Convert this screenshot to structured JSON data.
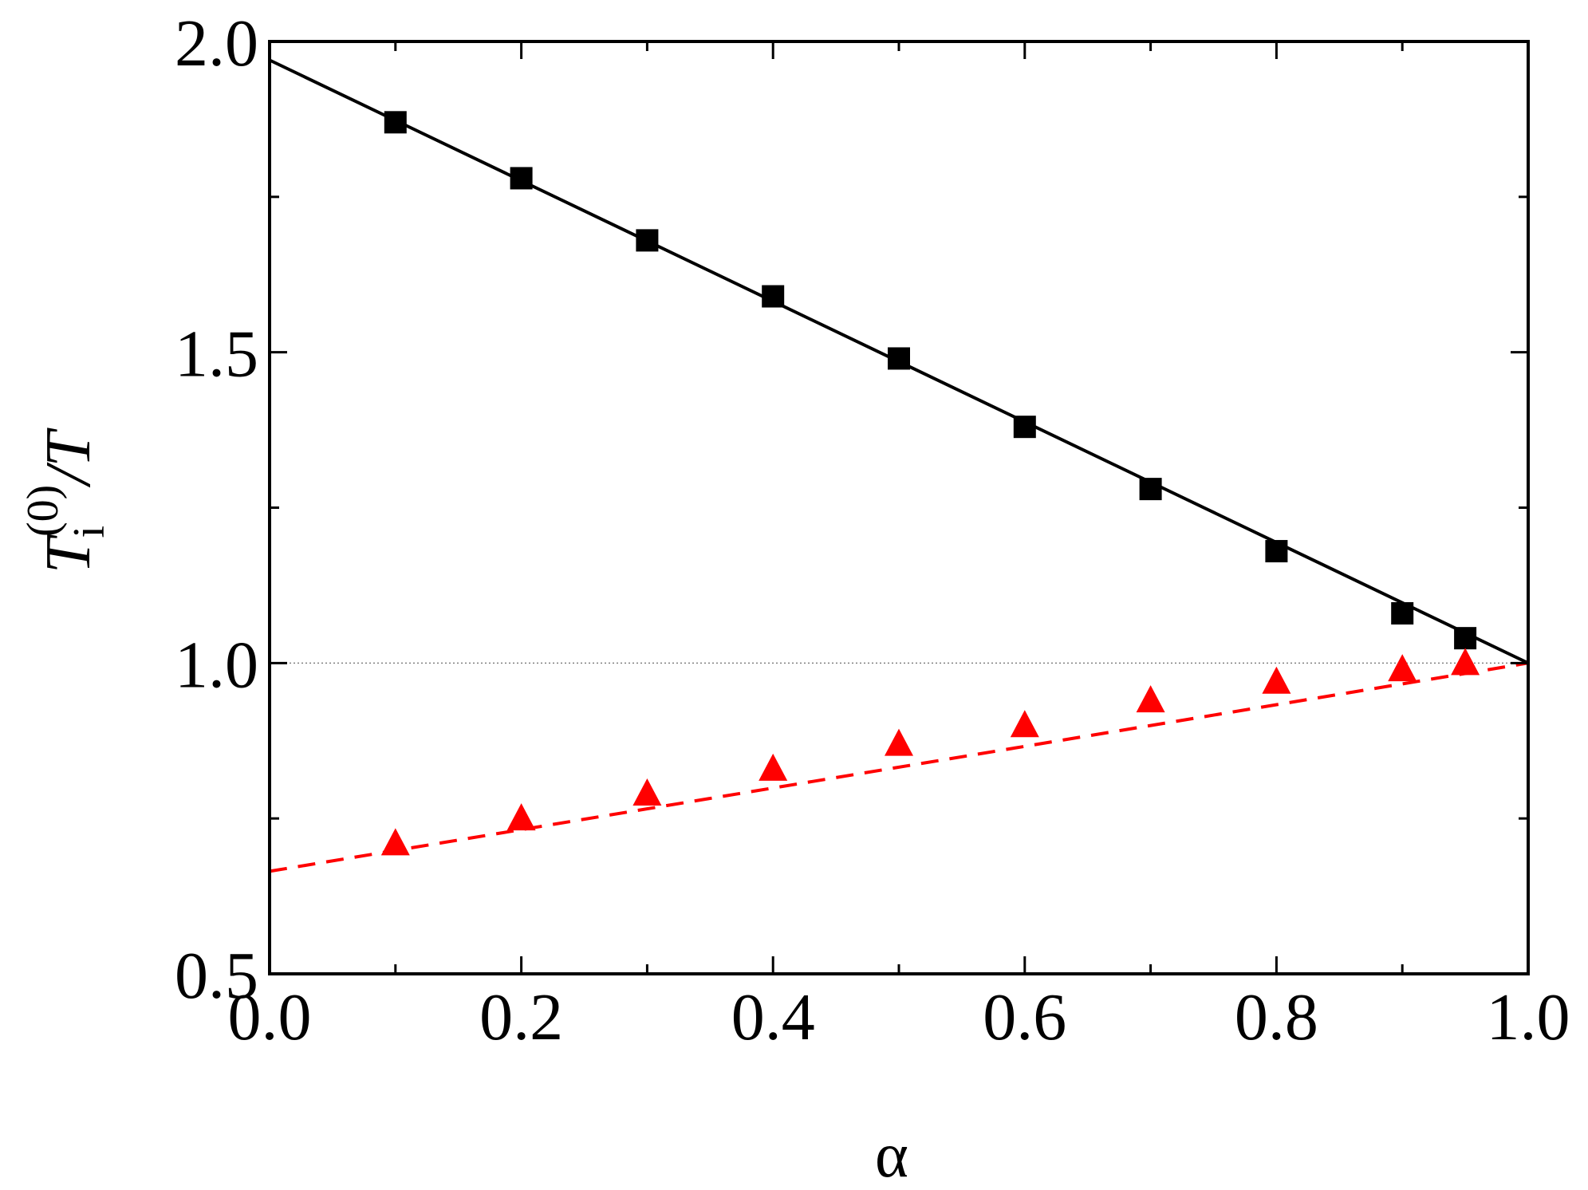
{
  "chart_data": {
    "type": "line",
    "xlabel": "α",
    "ylabel": {
      "base": "T",
      "subscript": "i",
      "superscript": "(0)",
      "suffix": "/T"
    },
    "xlim": [
      0.0,
      1.0
    ],
    "ylim": [
      0.5,
      2.0
    ],
    "x_ticks": [
      0.0,
      0.2,
      0.4,
      0.6,
      0.8,
      1.0
    ],
    "x_tick_labels": [
      "0.0",
      "0.2",
      "0.4",
      "0.6",
      "0.8",
      "1.0"
    ],
    "y_ticks": [
      0.5,
      1.0,
      1.5,
      2.0
    ],
    "y_tick_labels": [
      "0.5",
      "1.0",
      "1.5",
      "2.0"
    ],
    "x_minor_ticks": [
      0.1,
      0.3,
      0.5,
      0.7,
      0.9
    ],
    "y_minor_ticks": [
      0.75,
      1.25,
      1.75
    ],
    "grid": false,
    "reference_line": {
      "y": 1.0,
      "style": "dotted",
      "color": "#808080"
    },
    "series": [
      {
        "marker": "square",
        "color": "#000000",
        "points": {
          "x": [
            0.1,
            0.2,
            0.3,
            0.4,
            0.5,
            0.6,
            0.7,
            0.8,
            0.9,
            0.95
          ],
          "y": [
            1.87,
            1.78,
            1.68,
            1.59,
            1.49,
            1.38,
            1.28,
            1.18,
            1.08,
            1.04
          ]
        },
        "line_style": "solid",
        "line": {
          "x": [
            0.0,
            1.0
          ],
          "y": [
            1.97,
            1.0
          ]
        }
      },
      {
        "marker": "triangle",
        "color": "#ff0000",
        "points": {
          "x": [
            0.1,
            0.2,
            0.3,
            0.4,
            0.5,
            0.6,
            0.7,
            0.8,
            0.9,
            0.95
          ],
          "y": [
            0.71,
            0.75,
            0.79,
            0.83,
            0.87,
            0.9,
            0.94,
            0.97,
            0.99,
            1.0
          ]
        },
        "line_style": "dashed",
        "line": {
          "x": [
            0.0,
            1.0
          ],
          "y": [
            0.665,
            1.0
          ]
        }
      }
    ]
  }
}
